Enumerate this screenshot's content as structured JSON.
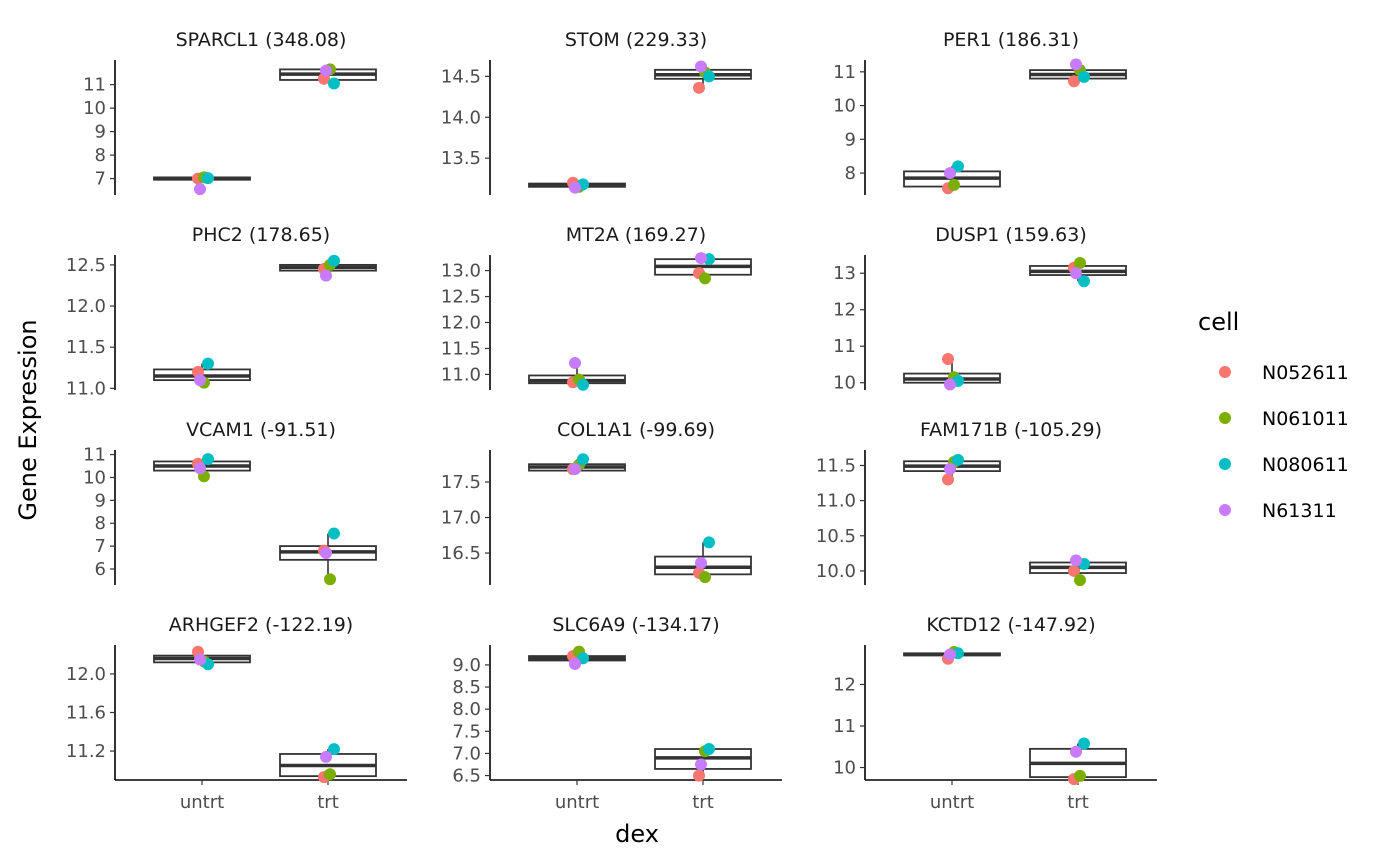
{
  "chart_data": {
    "type": "boxplot",
    "xlabel": "dex",
    "ylabel": "Gene Expression",
    "categories": [
      "untrt",
      "trt"
    ],
    "legend": {
      "title": "cell",
      "position": "right",
      "entries": [
        {
          "name": "N052611",
          "color": "#F8766D"
        },
        {
          "name": "N061011",
          "color": "#7CAE00"
        },
        {
          "name": "N080611",
          "color": "#00BFC4"
        },
        {
          "name": "N61311",
          "color": "#C77CFF"
        }
      ]
    },
    "grid": false,
    "panels": [
      {
        "title": "SPARCL1 (348.08)",
        "ylim": [
          6.3,
          12.05
        ],
        "yticks": [
          7,
          8,
          9,
          10,
          11
        ],
        "ytick_labels": [
          "7",
          "8",
          "9",
          "10",
          "11"
        ],
        "boxes": {
          "untrt": {
            "q1": 6.95,
            "median": 7.0,
            "q3": 7.05,
            "lo": 6.95,
            "hi": 7.05
          },
          "trt": {
            "q1": 11.2,
            "median": 11.45,
            "q3": 11.65,
            "lo": 11.1,
            "hi": 11.7
          }
        },
        "points": {
          "untrt": {
            "N052611": 7.0,
            "N061011": 7.05,
            "N080611": 7.02,
            "N61311": 6.55
          },
          "trt": {
            "N052611": 11.25,
            "N061011": 11.65,
            "N080611": 11.05,
            "N61311": 11.6
          }
        }
      },
      {
        "title": "STOM (229.33)",
        "ylim": [
          13.05,
          14.7
        ],
        "yticks": [
          13.5,
          14.0,
          14.5
        ],
        "ytick_labels": [
          "13.5",
          "14.0",
          "14.5"
        ],
        "boxes": {
          "untrt": {
            "q1": 13.15,
            "median": 13.17,
            "q3": 13.19,
            "lo": 13.14,
            "hi": 13.2
          },
          "trt": {
            "q1": 14.47,
            "median": 14.52,
            "q3": 14.58,
            "lo": 14.36,
            "hi": 14.62
          }
        },
        "points": {
          "untrt": {
            "N052611": 13.2,
            "N061011": 13.15,
            "N080611": 13.18,
            "N61311": 13.14
          },
          "trt": {
            "N052611": 14.36,
            "N061011": 14.55,
            "N080611": 14.5,
            "N61311": 14.62
          }
        }
      },
      {
        "title": "PER1 (186.31)",
        "ylim": [
          7.35,
          11.35
        ],
        "yticks": [
          8,
          9,
          10,
          11
        ],
        "ytick_labels": [
          "8",
          "9",
          "10",
          "11"
        ],
        "boxes": {
          "untrt": {
            "q1": 7.6,
            "median": 7.85,
            "q3": 8.05,
            "lo": 7.55,
            "hi": 8.2
          },
          "trt": {
            "q1": 10.8,
            "median": 10.92,
            "q3": 11.05,
            "lo": 10.7,
            "hi": 11.22
          }
        },
        "points": {
          "untrt": {
            "N052611": 7.55,
            "N061011": 7.65,
            "N080611": 8.2,
            "N61311": 8.0
          },
          "trt": {
            "N052611": 10.72,
            "N061011": 11.05,
            "N080611": 10.85,
            "N61311": 11.22
          }
        }
      },
      {
        "title": "PHC2 (178.65)",
        "ylim": [
          10.98,
          12.62
        ],
        "yticks": [
          11.0,
          11.5,
          12.0,
          12.5
        ],
        "ytick_labels": [
          "11.0",
          "11.5",
          "12.0",
          "12.5"
        ],
        "boxes": {
          "untrt": {
            "q1": 11.1,
            "median": 11.15,
            "q3": 11.23,
            "lo": 11.07,
            "hi": 11.3
          },
          "trt": {
            "q1": 12.43,
            "median": 12.47,
            "q3": 12.5,
            "lo": 12.37,
            "hi": 12.55
          }
        },
        "points": {
          "untrt": {
            "N052611": 11.2,
            "N061011": 11.07,
            "N080611": 11.3,
            "N61311": 11.1
          },
          "trt": {
            "N052611": 12.45,
            "N061011": 12.5,
            "N080611": 12.55,
            "N61311": 12.37
          }
        }
      },
      {
        "title": "MT2A (169.27)",
        "ylim": [
          10.7,
          13.3
        ],
        "yticks": [
          11.0,
          11.5,
          12.0,
          12.5,
          13.0
        ],
        "ytick_labels": [
          "11.0",
          "11.5",
          "12.0",
          "12.5",
          "13.0"
        ],
        "boxes": {
          "untrt": {
            "q1": 10.83,
            "median": 10.88,
            "q3": 10.98,
            "lo": 10.8,
            "hi": 11.22
          },
          "trt": {
            "q1": 12.92,
            "median": 13.08,
            "q3": 13.22,
            "lo": 12.85,
            "hi": 13.24
          }
        },
        "points": {
          "untrt": {
            "N052611": 10.85,
            "N061011": 10.9,
            "N080611": 10.8,
            "N61311": 11.22
          },
          "trt": {
            "N052611": 12.95,
            "N061011": 12.85,
            "N080611": 13.22,
            "N61311": 13.24
          }
        }
      },
      {
        "title": "DUSP1 (159.63)",
        "ylim": [
          9.8,
          13.5
        ],
        "yticks": [
          10,
          11,
          12,
          13
        ],
        "ytick_labels": [
          "10",
          "11",
          "12",
          "13"
        ],
        "boxes": {
          "untrt": {
            "q1": 10.0,
            "median": 10.1,
            "q3": 10.25,
            "lo": 9.95,
            "hi": 10.65
          },
          "trt": {
            "q1": 12.95,
            "median": 13.05,
            "q3": 13.2,
            "lo": 12.78,
            "hi": 13.3
          }
        },
        "points": {
          "untrt": {
            "N052611": 10.65,
            "N061011": 10.15,
            "N080611": 10.05,
            "N61311": 9.95
          },
          "trt": {
            "N052611": 13.15,
            "N061011": 13.28,
            "N080611": 12.78,
            "N61311": 13.0
          }
        }
      },
      {
        "title": "VCAM1 (-91.51)",
        "ylim": [
          5.3,
          11.2
        ],
        "yticks": [
          6,
          7,
          8,
          9,
          10,
          11
        ],
        "ytick_labels": [
          "6",
          "7",
          "8",
          "9",
          "10",
          "11"
        ],
        "boxes": {
          "untrt": {
            "q1": 10.3,
            "median": 10.5,
            "q3": 10.7,
            "lo": 10.05,
            "hi": 10.8
          },
          "trt": {
            "q1": 6.4,
            "median": 6.75,
            "q3": 7.0,
            "lo": 5.55,
            "hi": 7.55
          }
        },
        "points": {
          "untrt": {
            "N052611": 10.6,
            "N061011": 10.05,
            "N080611": 10.8,
            "N61311": 10.4
          },
          "trt": {
            "N052611": 6.8,
            "N061011": 5.55,
            "N080611": 7.55,
            "N61311": 6.7
          }
        }
      },
      {
        "title": "COL1A1 (-99.69)",
        "ylim": [
          16.05,
          17.95
        ],
        "yticks": [
          16.5,
          17.0,
          17.5
        ],
        "ytick_labels": [
          "16.5",
          "17.0",
          "17.5"
        ],
        "boxes": {
          "untrt": {
            "q1": 17.66,
            "median": 17.71,
            "q3": 17.75,
            "lo": 17.62,
            "hi": 17.82
          },
          "trt": {
            "q1": 16.2,
            "median": 16.3,
            "q3": 16.45,
            "lo": 16.15,
            "hi": 16.65
          }
        },
        "points": {
          "untrt": {
            "N052611": 17.68,
            "N061011": 17.74,
            "N080611": 17.82,
            "N61311": 17.68
          },
          "trt": {
            "N052611": 16.22,
            "N061011": 16.16,
            "N080611": 16.65,
            "N61311": 16.36
          }
        }
      },
      {
        "title": "FAM171B (-105.29)",
        "ylim": [
          9.8,
          11.72
        ],
        "yticks": [
          10.0,
          10.5,
          11.0,
          11.5
        ],
        "ytick_labels": [
          "10.0",
          "10.5",
          "11.0",
          "11.5"
        ],
        "boxes": {
          "untrt": {
            "q1": 11.42,
            "median": 11.49,
            "q3": 11.56,
            "lo": 11.3,
            "hi": 11.6
          },
          "trt": {
            "q1": 9.97,
            "median": 10.05,
            "q3": 10.12,
            "lo": 9.87,
            "hi": 10.15
          }
        },
        "points": {
          "untrt": {
            "N052611": 11.3,
            "N061011": 11.55,
            "N080611": 11.58,
            "N61311": 11.45
          },
          "trt": {
            "N052611": 10.0,
            "N061011": 9.87,
            "N080611": 10.1,
            "N61311": 10.15
          }
        }
      },
      {
        "title": "ARHGEF2 (-122.19)",
        "ylim": [
          10.9,
          12.3
        ],
        "yticks": [
          11.2,
          11.6,
          12.0
        ],
        "ytick_labels": [
          "11.2",
          "11.6",
          "12.0"
        ],
        "boxes": {
          "untrt": {
            "q1": 12.12,
            "median": 12.16,
            "q3": 12.19,
            "lo": 12.1,
            "hi": 12.23
          },
          "trt": {
            "q1": 10.94,
            "median": 11.05,
            "q3": 11.17,
            "lo": 10.92,
            "hi": 11.22
          }
        },
        "points": {
          "untrt": {
            "N052611": 12.23,
            "N061011": 12.13,
            "N080611": 12.1,
            "N61311": 12.15
          },
          "trt": {
            "N052611": 10.93,
            "N061011": 10.96,
            "N080611": 11.22,
            "N61311": 11.14
          }
        }
      },
      {
        "title": "SLC6A9 (-134.17)",
        "ylim": [
          6.4,
          9.45
        ],
        "yticks": [
          6.5,
          7.0,
          7.5,
          8.0,
          8.5,
          9.0
        ],
        "ytick_labels": [
          "6.5",
          "7.0",
          "7.5",
          "8.0",
          "8.5",
          "9.0"
        ],
        "boxes": {
          "untrt": {
            "q1": 9.1,
            "median": 9.15,
            "q3": 9.2,
            "lo": 9.02,
            "hi": 9.3
          },
          "trt": {
            "q1": 6.65,
            "median": 6.9,
            "q3": 7.1,
            "lo": 6.5,
            "hi": 7.1
          }
        },
        "points": {
          "untrt": {
            "N052611": 9.2,
            "N061011": 9.3,
            "N080611": 9.15,
            "N61311": 9.02
          },
          "trt": {
            "N052611": 6.5,
            "N061011": 7.05,
            "N080611": 7.1,
            "N61311": 6.75
          }
        }
      },
      {
        "title": "KCTD12 (-147.92)",
        "ylim": [
          9.7,
          12.95
        ],
        "yticks": [
          10,
          11,
          12
        ],
        "ytick_labels": [
          "10",
          "11",
          "12"
        ],
        "boxes": {
          "untrt": {
            "q1": 12.7,
            "median": 12.72,
            "q3": 12.75,
            "lo": 12.62,
            "hi": 12.78
          },
          "trt": {
            "q1": 9.77,
            "median": 10.1,
            "q3": 10.45,
            "lo": 9.72,
            "hi": 10.58
          }
        },
        "points": {
          "untrt": {
            "N052611": 12.62,
            "N061011": 12.78,
            "N080611": 12.75,
            "N61311": 12.72
          },
          "trt": {
            "N052611": 9.72,
            "N061011": 9.8,
            "N080611": 10.58,
            "N61311": 10.38
          }
        }
      }
    ]
  }
}
